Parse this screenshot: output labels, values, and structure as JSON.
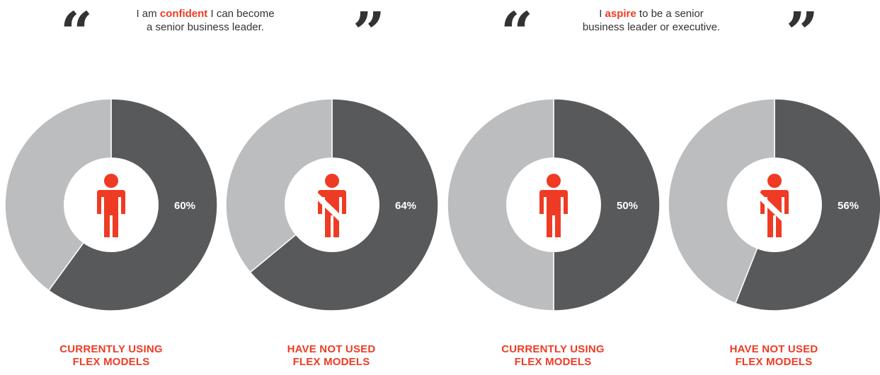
{
  "quotes": [
    {
      "open_mark": "“",
      "close_mark": "”",
      "pre": "I am ",
      "emph": "confident",
      "post": " I can become",
      "line2": "a senior business leader."
    },
    {
      "open_mark": "“",
      "close_mark": "”",
      "pre": "I ",
      "emph": "aspire",
      "post": " to be a senior",
      "line2": "business leader or executive."
    }
  ],
  "colors": {
    "dark": "#58595b",
    "light": "#bcbdbf",
    "accent": "#ef3b24",
    "text": "#333333"
  },
  "chart_data": [
    {
      "type": "pie",
      "value": 60,
      "value_label": "60%",
      "category_line1": "CURRENTLY USING",
      "category_line2": "FLEX MODELS",
      "icon": "person-icon"
    },
    {
      "type": "pie",
      "value": 64,
      "value_label": "64%",
      "category_line1": "HAVE NOT USED",
      "category_line2": "FLEX MODELS",
      "icon": "person-crossed-icon"
    },
    {
      "type": "pie",
      "value": 50,
      "value_label": "50%",
      "category_line1": "CURRENTLY USING",
      "category_line2": "FLEX MODELS",
      "icon": "person-icon"
    },
    {
      "type": "pie",
      "value": 56,
      "value_label": "56%",
      "category_line1": "HAVE NOT USED",
      "category_line2": "FLEX MODELS",
      "icon": "person-crossed-icon"
    }
  ]
}
